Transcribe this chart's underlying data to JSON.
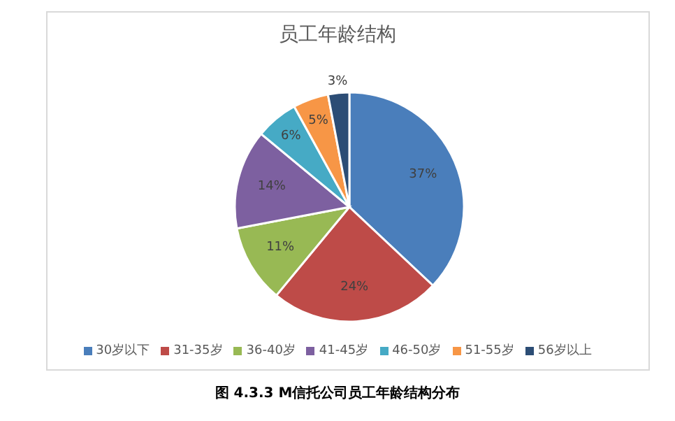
{
  "chart_data": {
    "type": "pie",
    "title": "员工年龄结构",
    "categories": [
      "30岁以下",
      "31-35岁",
      "36-40岁",
      "41-45岁",
      "46-50岁",
      "51-55岁",
      "56岁以上"
    ],
    "values": [
      37,
      24,
      11,
      14,
      6,
      5,
      3
    ],
    "colors": [
      "#4a7ebb",
      "#be4b48",
      "#98b954",
      "#7d60a0",
      "#46aac5",
      "#f79646",
      "#2c4d75"
    ],
    "value_labels": [
      "37%",
      "24%",
      "11%",
      "14%",
      "6%",
      "5%",
      "3%"
    ],
    "legend": "bottom",
    "annotations": [
      "图 4.3.3  M信托公司员工年龄结构分布"
    ]
  }
}
